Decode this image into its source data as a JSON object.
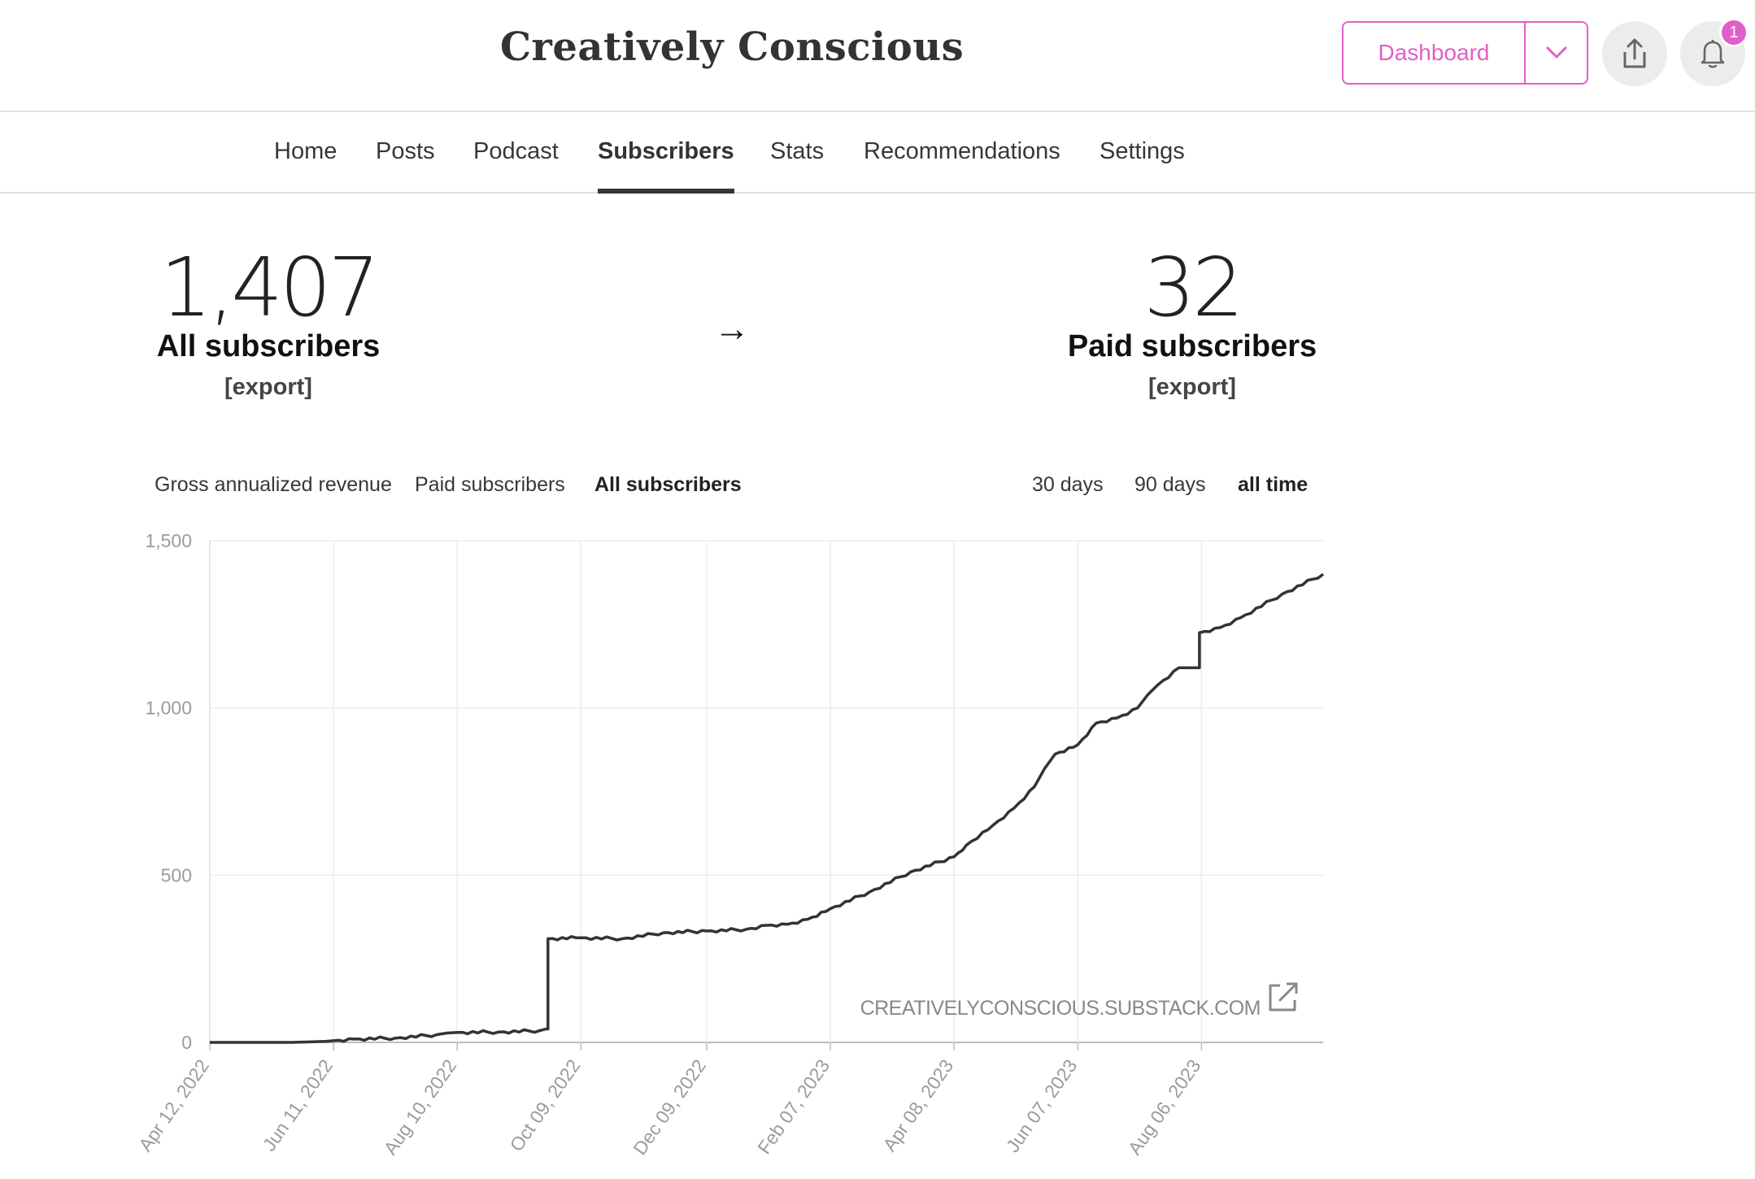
{
  "header": {
    "title": "Creatively Conscious",
    "dashboard_label": "Dashboard",
    "notification_count": "1",
    "accent": "#e15fc8"
  },
  "nav": {
    "items": [
      "Home",
      "Posts",
      "Podcast",
      "Subscribers",
      "Stats",
      "Recommendations",
      "Settings"
    ],
    "active": "Subscribers"
  },
  "stats": {
    "all": {
      "value": "1,407",
      "label": "All subscribers",
      "export": "[export]"
    },
    "arrow": "→",
    "paid": {
      "value": "32",
      "label": "Paid subscribers",
      "export": "[export]"
    }
  },
  "metric_tabs": {
    "items": [
      "Gross annualized revenue",
      "Paid subscribers",
      "All subscribers"
    ],
    "active": "All subscribers"
  },
  "range_tabs": {
    "items": [
      "30 days",
      "90 days",
      "all time"
    ],
    "active": "all time"
  },
  "chart_data": {
    "type": "line",
    "title": "All subscribers",
    "xlabel": "",
    "ylabel": "",
    "ylim": [
      0,
      1500
    ],
    "y_ticks": [
      "0",
      "500",
      "1,000",
      "1,500"
    ],
    "x_ticks": [
      "Apr 12, 2022",
      "Jun 11, 2022",
      "Aug 10, 2022",
      "Oct 09, 2022",
      "Dec 09, 2022",
      "Feb 07, 2023",
      "Apr 08, 2023",
      "Jun 07, 2023",
      "Aug 06, 2023"
    ],
    "x_days": [
      0,
      60,
      120,
      180,
      241,
      301,
      361,
      421,
      481
    ],
    "watermark": "CREATIVELYCONSCIOUS.SUBSTACK.COM",
    "line_color": "#333333",
    "series": [
      {
        "name": "All subscribers",
        "x": [
          0,
          40,
          56,
          60,
          70,
          90,
          110,
          115,
          120,
          140,
          160,
          163,
          164,
          180,
          200,
          220,
          241,
          260,
          270,
          280,
          290,
          301,
          320,
          340,
          361,
          367,
          380,
          390,
          400,
          405,
          410,
          421,
          430,
          440,
          450,
          455,
          460,
          470,
          480,
          490,
          500,
          520,
          540
        ],
        "values": [
          0,
          0,
          3,
          5,
          10,
          13,
          23,
          28,
          30,
          31,
          35,
          40,
          310,
          313,
          310,
          328,
          333,
          338,
          350,
          353,
          368,
          400,
          450,
          510,
          555,
          590,
          650,
          700,
          765,
          820,
          862,
          890,
          955,
          970,
          1000,
          1040,
          1070,
          1120,
          1225,
          1240,
          1270,
          1340,
          1400
        ]
      }
    ]
  }
}
